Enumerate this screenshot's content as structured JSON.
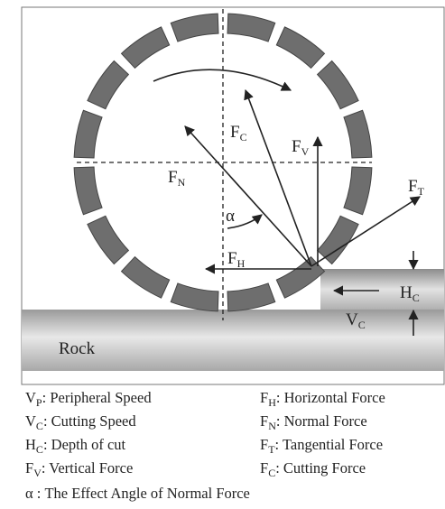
{
  "labels": {
    "fc": {
      "main": "F",
      "sub": "C"
    },
    "fv": {
      "main": "F",
      "sub": "V"
    },
    "fn": {
      "main": "F",
      "sub": "N"
    },
    "ft": {
      "main": "F",
      "sub": "T"
    },
    "fh": {
      "main": "F",
      "sub": "H"
    },
    "alpha": "α",
    "hc": {
      "main": "H",
      "sub": "C"
    },
    "vc": {
      "main": "V",
      "sub": "C"
    },
    "rock": "Rock"
  },
  "legend": {
    "rows": [
      [
        {
          "main": "V",
          "sub": "P",
          "text": ": Peripheral Speed"
        },
        {
          "main": "F",
          "sub": "H",
          "text": ": Horizontal Force"
        }
      ],
      [
        {
          "main": "V",
          "sub": "C",
          "text": ": Cutting Speed"
        },
        {
          "main": "F",
          "sub": "N",
          "text": ": Normal Force"
        }
      ],
      [
        {
          "main": "H",
          "sub": "C",
          "text": ": Depth of cut"
        },
        {
          "main": "F",
          "sub": "T",
          "text": ": Tangential Force"
        }
      ],
      [
        {
          "main": "F",
          "sub": "V",
          "text": ": Vertical Force"
        },
        {
          "main": "F",
          "sub": "C",
          "text": ": Cutting Force"
        }
      ]
    ],
    "last": "α : The Effect Angle of Normal Force"
  }
}
